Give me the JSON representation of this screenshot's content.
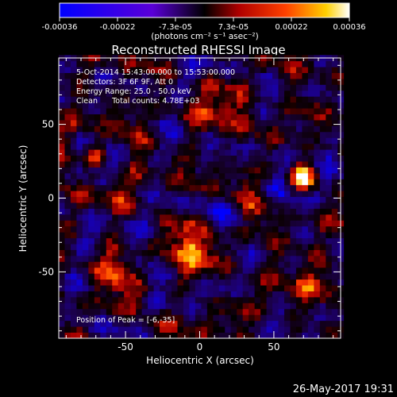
{
  "chart_data": {
    "type": "heatmap",
    "title": "Reconstructed RHESSI Image",
    "xlabel": "Heliocentric X (arcsec)",
    "ylabel": "Heliocentric Y (arcsec)",
    "xlim": [
      -95,
      95
    ],
    "ylim": [
      -95,
      95
    ],
    "x_ticks": [
      "-50",
      "0",
      "50"
    ],
    "y_ticks": [
      "50",
      "0",
      "-50"
    ],
    "colorbar": {
      "unit_label": "(photons cm⁻² s⁻¹ asec⁻²)",
      "range": [
        -0.00036,
        0.00036
      ],
      "tick_labels": [
        "-0.00036",
        "-0.00022",
        "-7.3e-05",
        "7.3e-05",
        "0.00022",
        "0.00036"
      ]
    },
    "annotations": [
      "5-Oct-2014 15:43:00.000 to 15:53:00.000",
      "Detectors: 3F 6F 9F, Att 0",
      "Energy Range: 25.0 - 50.0 keV",
      "Clean      Total counts: 4.78E+03",
      "Position of Peak = [-6,-35]"
    ],
    "sources": [
      {
        "x": -6,
        "y": -35,
        "strength": 1.0
      },
      {
        "x": -70,
        "y": 30,
        "strength": 0.8
      },
      {
        "x": 15,
        "y": 60,
        "strength": 0.75
      },
      {
        "x": 70,
        "y": 15,
        "strength": 0.75
      },
      {
        "x": -55,
        "y": -55,
        "strength": 0.65
      },
      {
        "x": 70,
        "y": -55,
        "strength": 0.6
      }
    ],
    "peak": {
      "x": -6,
      "y": -35
    },
    "grid": false
  },
  "footer": {
    "date": "26-May-2017 19:31"
  }
}
